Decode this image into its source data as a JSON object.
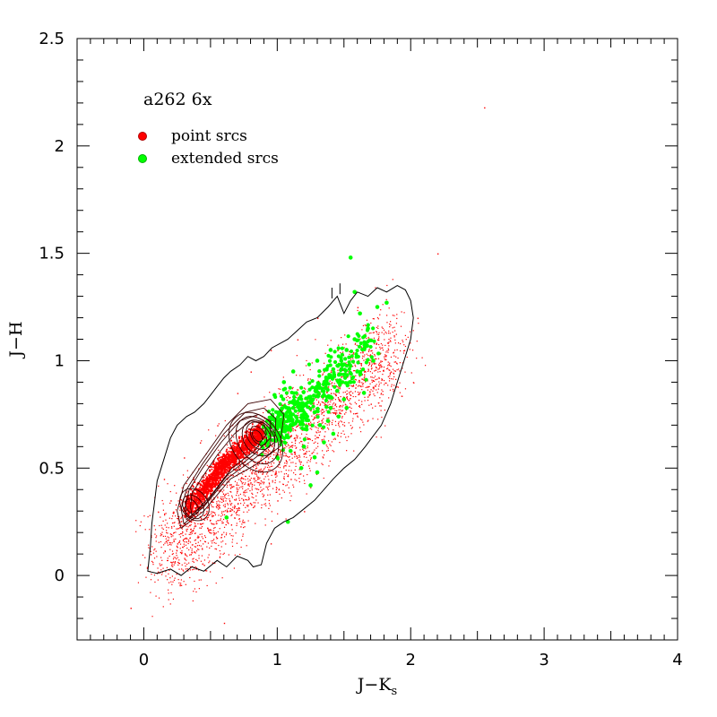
{
  "chart_data": {
    "type": "scatter",
    "title": "a262 6x",
    "xlabel": {
      "main": "J−K",
      "sub": "s"
    },
    "ylabel": "J−H",
    "xlim": [
      -0.5,
      4.0
    ],
    "ylim": [
      -0.3,
      2.5
    ],
    "x_ticks": [
      {
        "value": 0,
        "label": "0"
      },
      {
        "value": 1,
        "label": "1"
      },
      {
        "value": 2,
        "label": "2"
      },
      {
        "value": 3,
        "label": "3"
      },
      {
        "value": 4,
        "label": "4"
      }
    ],
    "y_ticks": [
      {
        "value": 0,
        "label": "0"
      },
      {
        "value": 0.5,
        "label": "0.5"
      },
      {
        "value": 1,
        "label": "1"
      },
      {
        "value": 1.5,
        "label": "1.5"
      },
      {
        "value": 2,
        "label": "2"
      },
      {
        "value": 2.5,
        "label": "2.5"
      }
    ],
    "x_minor_step": 0.1,
    "y_minor_step": 0.1,
    "legend_placement": "top-left",
    "grid": false,
    "series": [
      {
        "name": "point srcs",
        "color": "#ff0000"
      },
      {
        "name": "extended srcs",
        "color": "#00ff00"
      }
    ],
    "point_srcs_dense_locus": [
      [
        0.33,
        0.3
      ],
      [
        0.4,
        0.36
      ],
      [
        0.48,
        0.42
      ],
      [
        0.55,
        0.48
      ],
      [
        0.62,
        0.53
      ],
      [
        0.7,
        0.57
      ],
      [
        0.78,
        0.62
      ],
      [
        0.85,
        0.65
      ],
      [
        0.9,
        0.67
      ]
    ],
    "point_srcs_scatter_sample": [
      [
        0.05,
        0.1
      ],
      [
        0.12,
        0.05
      ],
      [
        0.2,
        0.35
      ],
      [
        0.25,
        0.15
      ],
      [
        0.3,
        0.55
      ],
      [
        0.35,
        0.1
      ],
      [
        0.42,
        0.62
      ],
      [
        0.5,
        0.2
      ],
      [
        0.55,
        0.7
      ],
      [
        0.62,
        0.3
      ],
      [
        0.7,
        0.85
      ],
      [
        0.75,
        0.25
      ],
      [
        0.8,
        0.95
      ],
      [
        0.88,
        0.4
      ],
      [
        0.95,
        1.05
      ],
      [
        1.0,
        0.35
      ],
      [
        1.05,
        0.9
      ],
      [
        1.1,
        0.45
      ],
      [
        1.15,
        1.1
      ],
      [
        1.25,
        0.55
      ],
      [
        1.3,
        1.2
      ],
      [
        1.35,
        0.65
      ],
      [
        1.45,
        1.05
      ],
      [
        1.5,
        0.7
      ],
      [
        1.55,
        0.95
      ],
      [
        1.6,
        1.25
      ],
      [
        1.7,
        0.8
      ],
      [
        1.75,
        1.1
      ],
      [
        1.85,
        0.95
      ],
      [
        1.95,
        1.05
      ],
      [
        2.05,
        1.2
      ],
      [
        2.2,
        1.5
      ],
      [
        2.55,
        2.18
      ],
      [
        -0.1,
        -0.15
      ],
      [
        0.6,
        -0.22
      ],
      [
        0.15,
        0.45
      ],
      [
        1.2,
        0.3
      ],
      [
        0.45,
        0.05
      ],
      [
        0.95,
        0.15
      ],
      [
        1.4,
        0.85
      ]
    ],
    "extended_srcs_points": [
      [
        0.88,
        0.62
      ],
      [
        0.92,
        0.66
      ],
      [
        0.96,
        0.7
      ],
      [
        1.0,
        0.72
      ],
      [
        1.04,
        0.68
      ],
      [
        1.08,
        0.74
      ],
      [
        1.1,
        0.7
      ],
      [
        1.12,
        0.78
      ],
      [
        1.15,
        0.72
      ],
      [
        1.18,
        0.8
      ],
      [
        1.2,
        0.75
      ],
      [
        1.22,
        0.68
      ],
      [
        1.25,
        0.82
      ],
      [
        1.28,
        0.76
      ],
      [
        1.3,
        0.88
      ],
      [
        1.32,
        0.7
      ],
      [
        1.35,
        0.84
      ],
      [
        1.38,
        0.92
      ],
      [
        1.4,
        0.78
      ],
      [
        1.42,
        0.96
      ],
      [
        1.45,
        0.86
      ],
      [
        1.48,
        1.0
      ],
      [
        1.5,
        0.82
      ],
      [
        1.52,
        1.05
      ],
      [
        1.55,
        0.9
      ],
      [
        1.58,
        1.1
      ],
      [
        1.6,
        0.95
      ],
      [
        1.62,
        1.22
      ],
      [
        1.65,
        0.85
      ],
      [
        1.68,
        1.15
      ],
      [
        1.72,
        1.0
      ],
      [
        1.75,
        1.25
      ],
      [
        1.82,
        1.27
      ],
      [
        1.55,
        1.48
      ],
      [
        1.58,
        1.32
      ],
      [
        1.05,
        0.9
      ],
      [
        1.12,
        0.95
      ],
      [
        0.98,
        0.84
      ],
      [
        1.2,
        0.6
      ],
      [
        1.28,
        0.55
      ],
      [
        1.35,
        0.62
      ],
      [
        1.42,
        0.66
      ],
      [
        1.1,
        0.58
      ],
      [
        1.0,
        0.55
      ],
      [
        1.18,
        0.5
      ],
      [
        1.25,
        0.42
      ],
      [
        1.3,
        0.48
      ],
      [
        1.08,
        0.25
      ],
      [
        0.62,
        0.27
      ],
      [
        1.38,
        0.72
      ],
      [
        1.46,
        0.74
      ],
      [
        1.52,
        0.78
      ],
      [
        1.3,
        1.0
      ],
      [
        1.4,
        1.05
      ]
    ],
    "outer_contour": [
      [
        0.03,
        0.02
      ],
      [
        0.1,
        0.01
      ],
      [
        0.2,
        0.03
      ],
      [
        0.28,
        0.0
      ],
      [
        0.36,
        0.04
      ],
      [
        0.45,
        0.02
      ],
      [
        0.55,
        0.07
      ],
      [
        0.62,
        0.04
      ],
      [
        0.7,
        0.09
      ],
      [
        0.78,
        0.07
      ],
      [
        0.82,
        0.04
      ],
      [
        0.88,
        0.05
      ],
      [
        0.92,
        0.15
      ],
      [
        0.98,
        0.22
      ],
      [
        1.05,
        0.25
      ],
      [
        1.12,
        0.27
      ],
      [
        1.2,
        0.31
      ],
      [
        1.28,
        0.35
      ],
      [
        1.35,
        0.4
      ],
      [
        1.42,
        0.45
      ],
      [
        1.5,
        0.5
      ],
      [
        1.58,
        0.54
      ],
      [
        1.66,
        0.6
      ],
      [
        1.72,
        0.65
      ],
      [
        1.78,
        0.7
      ],
      [
        1.85,
        0.8
      ],
      [
        1.9,
        0.9
      ],
      [
        1.95,
        1.0
      ],
      [
        2.0,
        1.1
      ],
      [
        2.02,
        1.2
      ],
      [
        2.0,
        1.28
      ],
      [
        1.96,
        1.33
      ],
      [
        1.9,
        1.35
      ],
      [
        1.82,
        1.32
      ],
      [
        1.75,
        1.34
      ],
      [
        1.68,
        1.3
      ],
      [
        1.6,
        1.32
      ],
      [
        1.55,
        1.28
      ],
      [
        1.5,
        1.22
      ],
      [
        1.45,
        1.3
      ],
      [
        1.38,
        1.25
      ],
      [
        1.3,
        1.2
      ],
      [
        1.22,
        1.18
      ],
      [
        1.15,
        1.14
      ],
      [
        1.08,
        1.1
      ],
      [
        1.02,
        1.08
      ],
      [
        0.96,
        1.06
      ],
      [
        0.9,
        1.02
      ],
      [
        0.84,
        1.0
      ],
      [
        0.78,
        1.02
      ],
      [
        0.72,
        0.98
      ],
      [
        0.65,
        0.95
      ],
      [
        0.6,
        0.92
      ],
      [
        0.55,
        0.88
      ],
      [
        0.5,
        0.84
      ],
      [
        0.45,
        0.8
      ],
      [
        0.38,
        0.76
      ],
      [
        0.32,
        0.74
      ],
      [
        0.25,
        0.7
      ],
      [
        0.2,
        0.64
      ],
      [
        0.15,
        0.54
      ],
      [
        0.1,
        0.44
      ],
      [
        0.08,
        0.34
      ],
      [
        0.06,
        0.24
      ],
      [
        0.05,
        0.14
      ],
      [
        0.03,
        0.02
      ]
    ],
    "inner_contours": [
      {
        "cx": 0.85,
        "cy": 0.65,
        "rx": 0.03,
        "ry": 0.03
      },
      {
        "cx": 0.86,
        "cy": 0.65,
        "rx": 0.05,
        "ry": 0.05
      },
      {
        "cx": 0.86,
        "cy": 0.65,
        "rx": 0.08,
        "ry": 0.07
      },
      {
        "cx": 0.86,
        "cy": 0.64,
        "rx": 0.11,
        "ry": 0.09
      },
      {
        "cx": 0.85,
        "cy": 0.63,
        "rx": 0.14,
        "ry": 0.12
      },
      {
        "cx": 0.84,
        "cy": 0.62,
        "rx": 0.18,
        "ry": 0.15
      },
      {
        "cx": 0.36,
        "cy": 0.32,
        "rx": 0.04,
        "ry": 0.04
      },
      {
        "cx": 0.37,
        "cy": 0.32,
        "rx": 0.07,
        "ry": 0.06
      },
      {
        "cx": 0.38,
        "cy": 0.33,
        "rx": 0.1,
        "ry": 0.08
      }
    ],
    "locus_contours": [
      [
        [
          0.28,
          0.22
        ],
        [
          0.45,
          0.3
        ],
        [
          0.65,
          0.45
        ],
        [
          0.85,
          0.52
        ],
        [
          1.02,
          0.6
        ],
        [
          1.05,
          0.75
        ],
        [
          0.95,
          0.82
        ],
        [
          0.78,
          0.8
        ],
        [
          0.62,
          0.7
        ],
        [
          0.45,
          0.55
        ],
        [
          0.3,
          0.42
        ],
        [
          0.25,
          0.3
        ],
        [
          0.28,
          0.22
        ]
      ],
      [
        [
          0.3,
          0.24
        ],
        [
          0.45,
          0.32
        ],
        [
          0.62,
          0.45
        ],
        [
          0.82,
          0.54
        ],
        [
          0.98,
          0.62
        ],
        [
          0.99,
          0.73
        ],
        [
          0.9,
          0.78
        ],
        [
          0.76,
          0.76
        ],
        [
          0.6,
          0.66
        ],
        [
          0.44,
          0.52
        ],
        [
          0.32,
          0.4
        ],
        [
          0.28,
          0.31
        ],
        [
          0.3,
          0.24
        ]
      ],
      [
        [
          0.32,
          0.26
        ],
        [
          0.47,
          0.34
        ],
        [
          0.63,
          0.47
        ],
        [
          0.82,
          0.56
        ],
        [
          0.95,
          0.64
        ],
        [
          0.95,
          0.72
        ],
        [
          0.86,
          0.75
        ],
        [
          0.72,
          0.72
        ],
        [
          0.58,
          0.62
        ],
        [
          0.44,
          0.5
        ],
        [
          0.34,
          0.4
        ],
        [
          0.31,
          0.32
        ],
        [
          0.32,
          0.26
        ]
      ],
      [
        [
          0.36,
          0.28
        ],
        [
          0.5,
          0.37
        ],
        [
          0.66,
          0.5
        ],
        [
          0.83,
          0.58
        ],
        [
          0.92,
          0.66
        ],
        [
          0.9,
          0.71
        ],
        [
          0.8,
          0.72
        ],
        [
          0.68,
          0.66
        ],
        [
          0.55,
          0.56
        ],
        [
          0.43,
          0.45
        ],
        [
          0.36,
          0.38
        ],
        [
          0.35,
          0.32
        ],
        [
          0.36,
          0.28
        ]
      ]
    ]
  }
}
